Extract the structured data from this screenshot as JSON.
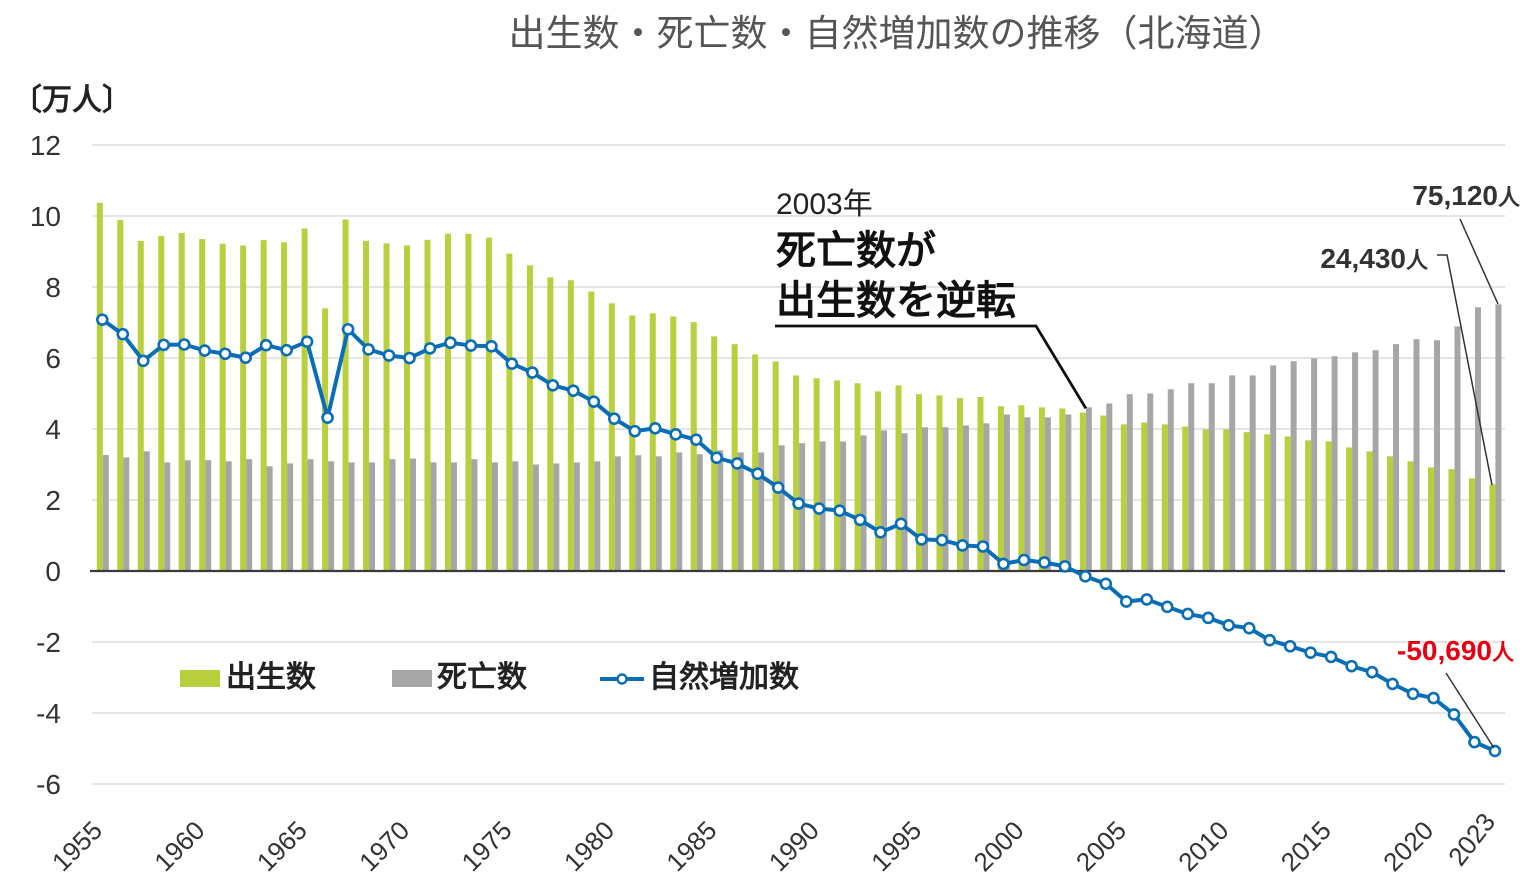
{
  "chart_data": {
    "type": "bar",
    "title": "出生数・死亡数・自然増加数の推移（北海道）",
    "ylabel": "〔万人〕",
    "xlabel": "",
    "ylim": [
      -6,
      12
    ],
    "yticks": [
      12,
      10,
      8,
      6,
      4,
      2,
      0,
      -2,
      -4,
      -6
    ],
    "grid": true,
    "legend_position": "bottom-left",
    "x": [
      1955,
      1956,
      1957,
      1958,
      1959,
      1960,
      1961,
      1962,
      1963,
      1964,
      1965,
      1966,
      1967,
      1968,
      1969,
      1970,
      1971,
      1972,
      1973,
      1974,
      1975,
      1976,
      1977,
      1978,
      1979,
      1980,
      1981,
      1982,
      1983,
      1984,
      1985,
      1986,
      1987,
      1988,
      1989,
      1990,
      1991,
      1992,
      1993,
      1994,
      1995,
      1996,
      1997,
      1998,
      1999,
      2000,
      2001,
      2002,
      2003,
      2004,
      2005,
      2006,
      2007,
      2008,
      2009,
      2010,
      2011,
      2012,
      2013,
      2014,
      2015,
      2016,
      2017,
      2018,
      2019,
      2020,
      2021,
      2022,
      2023
    ],
    "xticks": [
      1955,
      1960,
      1965,
      1970,
      1975,
      1980,
      1985,
      1990,
      1995,
      2000,
      2005,
      2010,
      2015,
      2020,
      2023
    ],
    "series": [
      {
        "name": "出生数",
        "type": "bar",
        "color": "#b9cf3e",
        "values": [
          10.37,
          9.89,
          9.3,
          9.44,
          9.52,
          9.35,
          9.22,
          9.17,
          9.32,
          9.26,
          9.65,
          7.4,
          9.9,
          9.3,
          9.23,
          9.17,
          9.33,
          9.5,
          9.5,
          9.39,
          8.94,
          8.61,
          8.27,
          8.19,
          7.87,
          7.54,
          7.2,
          7.26,
          7.17,
          7.01,
          6.61,
          6.39,
          6.1,
          5.9,
          5.51,
          5.43,
          5.37,
          5.29,
          5.06,
          5.23,
          4.98,
          4.95,
          4.87,
          4.9,
          4.64,
          4.67,
          4.61,
          4.58,
          4.46,
          4.38,
          4.13,
          4.18,
          4.13,
          4.07,
          3.99,
          3.99,
          3.91,
          3.85,
          3.79,
          3.68,
          3.65,
          3.48,
          3.37,
          3.23,
          3.09,
          2.92,
          2.87,
          2.61,
          2.443
        ]
      },
      {
        "name": "死亡数",
        "type": "bar",
        "color": "#a6a6a6",
        "values": [
          3.27,
          3.2,
          3.37,
          3.06,
          3.12,
          3.12,
          3.09,
          3.15,
          2.95,
          3.03,
          3.15,
          3.09,
          3.06,
          3.06,
          3.15,
          3.17,
          3.06,
          3.06,
          3.15,
          3.06,
          3.09,
          3.0,
          3.03,
          3.06,
          3.09,
          3.23,
          3.26,
          3.23,
          3.34,
          3.29,
          3.4,
          3.34,
          3.34,
          3.54,
          3.6,
          3.65,
          3.65,
          3.82,
          3.96,
          3.88,
          4.05,
          4.05,
          4.1,
          4.16,
          4.41,
          4.33,
          4.33,
          4.41,
          4.61,
          4.72,
          4.98,
          5.0,
          5.12,
          5.29,
          5.29,
          5.51,
          5.51,
          5.79,
          5.91,
          5.99,
          6.05,
          6.16,
          6.22,
          6.39,
          6.53,
          6.5,
          6.89,
          7.43,
          7.512
        ]
      },
      {
        "name": "自然増加数",
        "type": "line",
        "color": "#0a6eb6",
        "values": [
          7.08,
          6.67,
          5.92,
          6.37,
          6.38,
          6.21,
          6.12,
          6.01,
          6.36,
          6.22,
          6.46,
          4.32,
          6.81,
          6.24,
          6.07,
          6.0,
          6.27,
          6.43,
          6.35,
          6.33,
          5.84,
          5.59,
          5.23,
          5.08,
          4.77,
          4.29,
          3.94,
          4.02,
          3.85,
          3.7,
          3.19,
          3.03,
          2.74,
          2.35,
          1.9,
          1.76,
          1.7,
          1.44,
          1.09,
          1.33,
          0.89,
          0.87,
          0.72,
          0.69,
          0.2,
          0.31,
          0.24,
          0.13,
          -0.15,
          -0.36,
          -0.86,
          -0.8,
          -1.01,
          -1.21,
          -1.32,
          -1.53,
          -1.61,
          -1.95,
          -2.12,
          -2.3,
          -2.42,
          -2.68,
          -2.85,
          -3.18,
          -3.46,
          -3.58,
          -4.04,
          -4.82,
          -5.069
        ]
      }
    ],
    "annotations": {
      "crossover": {
        "year_text": "2003年",
        "line1": "死亡数が",
        "line2": "出生数を逆転",
        "target_year": 2003
      },
      "deaths_2023": {
        "value_text": "75,120",
        "unit": "人",
        "target_year": 2023
      },
      "births_2023": {
        "value_text": "24,430",
        "unit": "人",
        "target_year": 2023
      },
      "natural_2023": {
        "value_text": "-50,690",
        "unit": "人",
        "target_year": 2023,
        "color": "#e60012"
      }
    }
  }
}
